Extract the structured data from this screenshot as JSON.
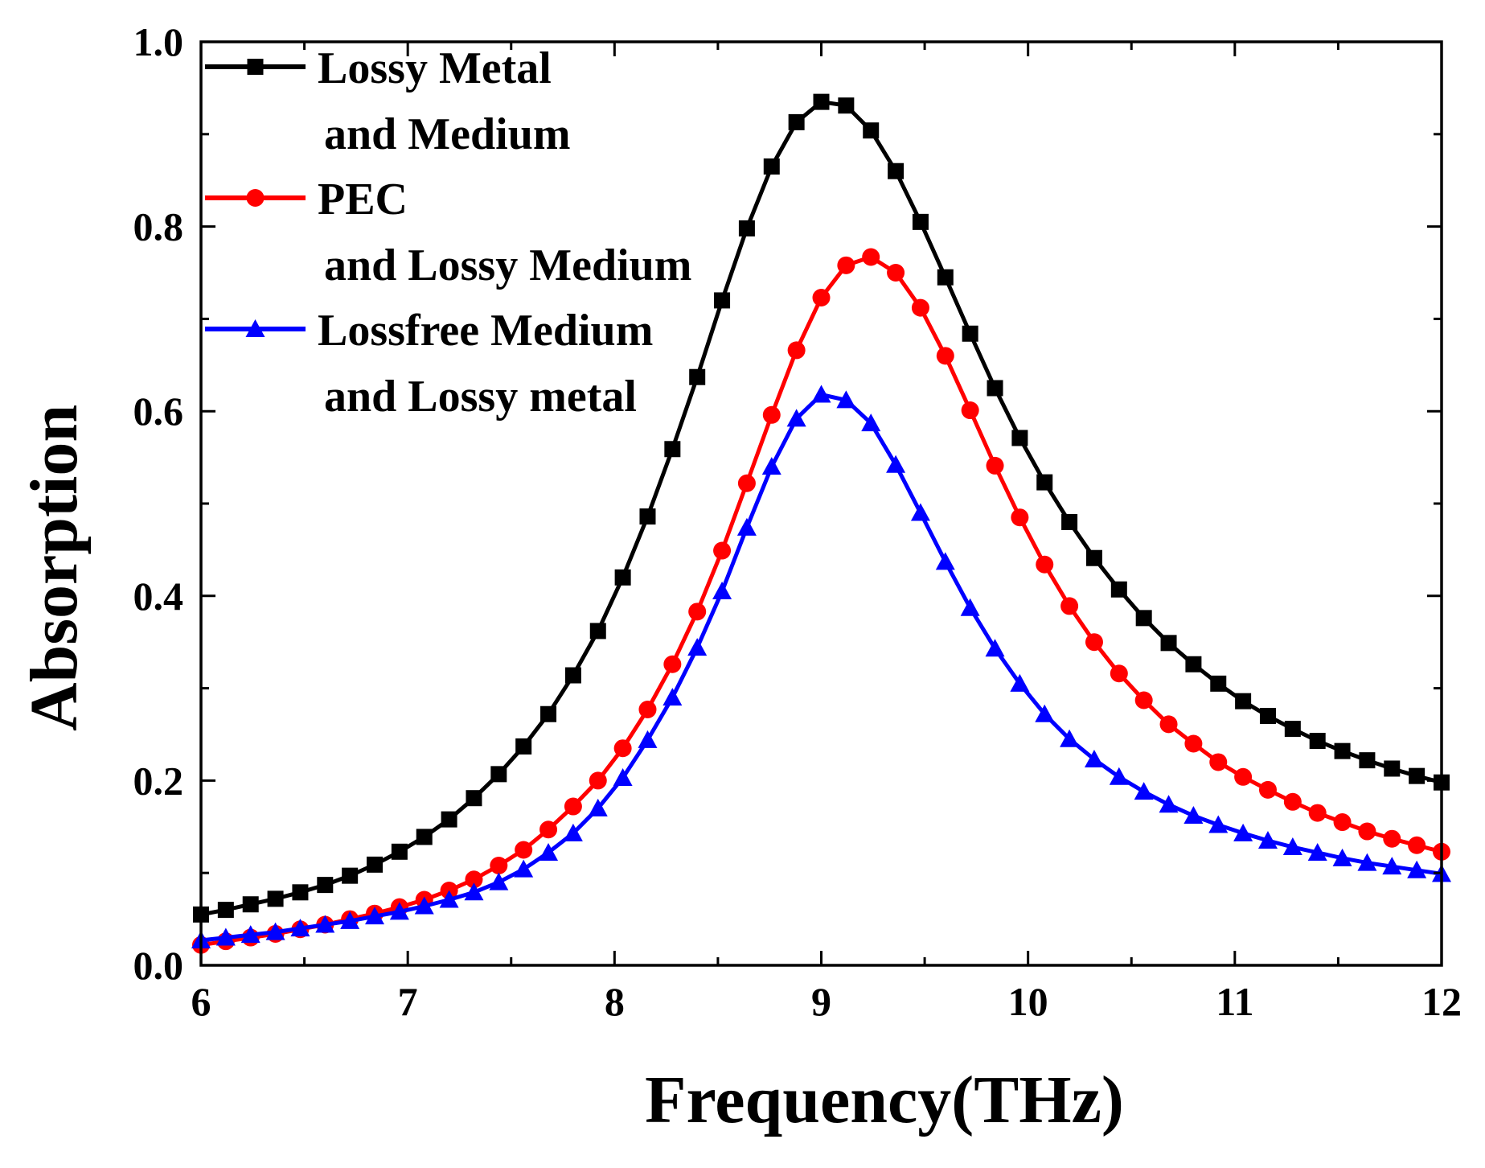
{
  "chart_data": {
    "type": "line",
    "title": "",
    "xlabel": "Frequency(THz)",
    "ylabel": "Absorption",
    "xlim": [
      6,
      12
    ],
    "ylim": [
      0.0,
      1.0
    ],
    "x_ticks": [
      "6",
      "7",
      "8",
      "9",
      "10",
      "11",
      "12"
    ],
    "y_ticks": [
      "0.0",
      "0.2",
      "0.4",
      "0.6",
      "0.8",
      "1.0"
    ],
    "grid": false,
    "legend_position": "top-left",
    "x": [
      6.0,
      6.12,
      6.24,
      6.36,
      6.48,
      6.6,
      6.72,
      6.84,
      6.96,
      7.08,
      7.2,
      7.32,
      7.44,
      7.56,
      7.68,
      7.8,
      7.92,
      8.04,
      8.16,
      8.28,
      8.4,
      8.52,
      8.64,
      8.76,
      8.88,
      9.0,
      9.12,
      9.24,
      9.36,
      9.48,
      9.6,
      9.72,
      9.84,
      9.96,
      10.08,
      10.2,
      10.32,
      10.44,
      10.56,
      10.68,
      10.8,
      10.92,
      11.04,
      11.16,
      11.28,
      11.4,
      11.52,
      11.64,
      11.76,
      11.88,
      12.0
    ],
    "series": [
      {
        "name": "Lossy Metal and Medium",
        "legend_lines": [
          "Lossy Metal",
          "and Medium"
        ],
        "color": "#000000",
        "marker": "square",
        "values": [
          0.055,
          0.06,
          0.066,
          0.072,
          0.079,
          0.087,
          0.097,
          0.109,
          0.123,
          0.139,
          0.158,
          0.181,
          0.207,
          0.237,
          0.272,
          0.314,
          0.362,
          0.42,
          0.486,
          0.559,
          0.637,
          0.72,
          0.798,
          0.865,
          0.913,
          0.935,
          0.931,
          0.904,
          0.86,
          0.805,
          0.745,
          0.684,
          0.625,
          0.571,
          0.523,
          0.48,
          0.441,
          0.407,
          0.376,
          0.349,
          0.326,
          0.305,
          0.286,
          0.27,
          0.256,
          0.243,
          0.232,
          0.222,
          0.213,
          0.205,
          0.198
        ]
      },
      {
        "name": "PEC and Lossy Medium",
        "legend_lines": [
          "PEC",
          "and Lossy Medium"
        ],
        "color": "#ff0000",
        "marker": "circle",
        "values": [
          0.022,
          0.026,
          0.03,
          0.034,
          0.039,
          0.044,
          0.05,
          0.056,
          0.063,
          0.071,
          0.081,
          0.093,
          0.108,
          0.125,
          0.147,
          0.172,
          0.2,
          0.235,
          0.277,
          0.326,
          0.383,
          0.449,
          0.522,
          0.596,
          0.666,
          0.723,
          0.758,
          0.767,
          0.75,
          0.712,
          0.66,
          0.601,
          0.541,
          0.485,
          0.434,
          0.389,
          0.35,
          0.316,
          0.287,
          0.261,
          0.24,
          0.22,
          0.204,
          0.19,
          0.177,
          0.165,
          0.155,
          0.145,
          0.137,
          0.13,
          0.123
        ]
      },
      {
        "name": "Lossfree Medium and Lossy metal",
        "legend_lines": [
          "Lossfree Medium",
          "and Lossy metal"
        ],
        "color": "#0000ff",
        "marker": "triangle",
        "values": [
          0.027,
          0.03,
          0.033,
          0.036,
          0.04,
          0.044,
          0.048,
          0.053,
          0.058,
          0.064,
          0.071,
          0.079,
          0.09,
          0.104,
          0.122,
          0.143,
          0.17,
          0.203,
          0.244,
          0.29,
          0.344,
          0.405,
          0.474,
          0.54,
          0.592,
          0.618,
          0.612,
          0.587,
          0.542,
          0.49,
          0.437,
          0.387,
          0.343,
          0.305,
          0.272,
          0.245,
          0.223,
          0.204,
          0.188,
          0.174,
          0.162,
          0.152,
          0.143,
          0.135,
          0.128,
          0.122,
          0.116,
          0.111,
          0.107,
          0.103,
          0.099
        ]
      }
    ]
  }
}
